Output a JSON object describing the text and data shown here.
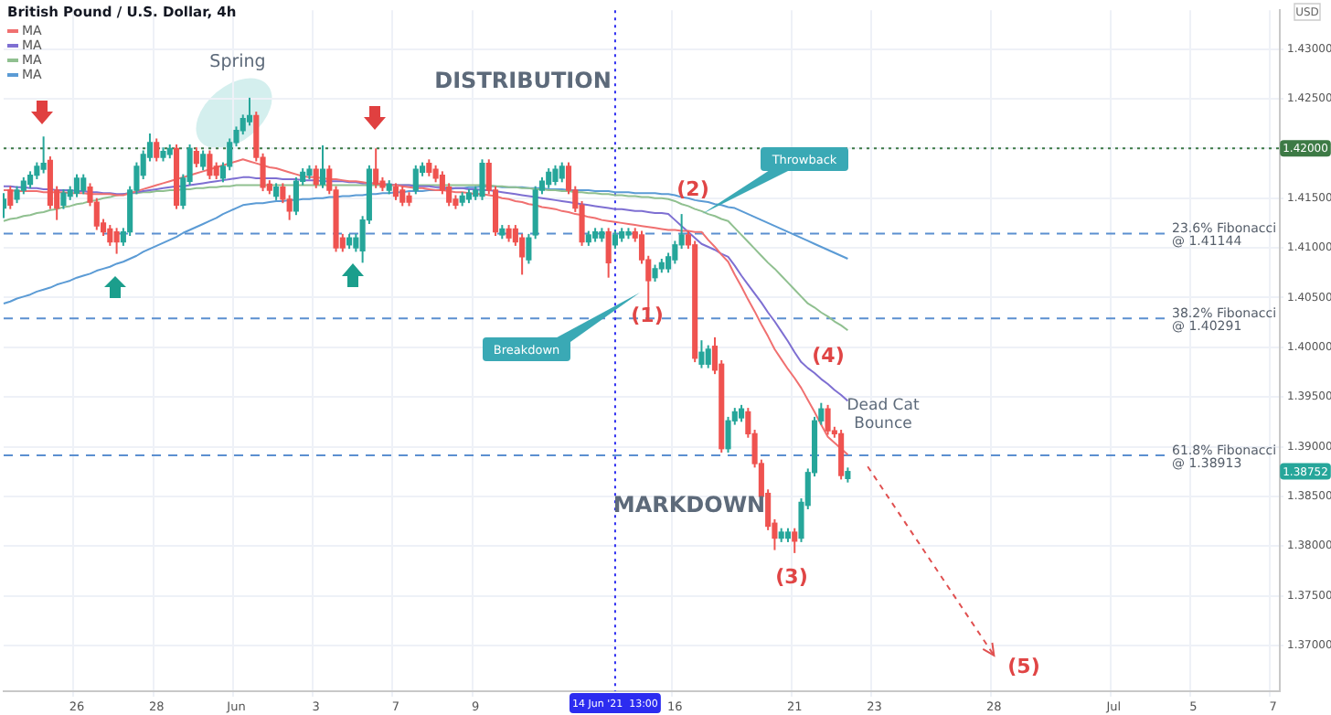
{
  "chart_data": {
    "type": "candlestick",
    "title": "British Pound / U.S. Dollar, 4h",
    "ylabel": "USD",
    "categories": [
      null,
      null,
      null,
      null,
      null,
      null,
      null,
      null,
      null,
      null,
      null,
      "26",
      null,
      null,
      null,
      null,
      null,
      null,
      null,
      null,
      null,
      null,
      null,
      "28",
      null,
      null,
      null,
      null,
      null,
      null,
      null,
      null,
      null,
      null,
      null,
      "Jun",
      null,
      null,
      null,
      null,
      null,
      null,
      null,
      null,
      null,
      null,
      null,
      "3",
      null,
      null,
      null,
      null,
      null,
      null,
      null,
      null,
      null,
      null,
      null,
      "7",
      null,
      null,
      null,
      null,
      null,
      null,
      null,
      null,
      null,
      null,
      null,
      "9",
      null,
      null,
      null,
      null,
      null,
      null,
      null,
      null,
      null,
      null,
      null,
      null,
      null,
      null,
      null,
      null,
      null,
      null,
      null,
      null,
      "14 Jun '21  13:00",
      null,
      null,
      null,
      null,
      null,
      null,
      null,
      null,
      "16",
      null,
      null,
      null,
      null,
      null,
      null,
      null,
      null,
      null,
      null,
      null,
      null,
      null,
      null,
      null,
      null,
      null,
      "21",
      null,
      null,
      null,
      null,
      null,
      null,
      null,
      null,
      null,
      null,
      null,
      "23",
      null,
      null,
      null,
      null,
      null,
      null,
      null,
      null,
      null,
      null,
      null,
      null,
      null,
      null,
      null,
      null,
      null,
      "28",
      null,
      null,
      null,
      null,
      null,
      null,
      null,
      null,
      null,
      null,
      null,
      null,
      null,
      null,
      null,
      null,
      null,
      "Jul",
      null,
      null,
      null,
      null,
      null,
      null,
      null,
      null,
      null,
      null,
      null,
      "5",
      null,
      null,
      null,
      null,
      null,
      null,
      null,
      null,
      null,
      null,
      null,
      "7",
      null
    ],
    "ohlc": [
      [
        1.414,
        1.4155,
        1.413,
        1.4149
      ],
      [
        1.4158,
        1.4162,
        1.4139,
        1.4143
      ],
      [
        1.4149,
        1.4162,
        1.4145,
        1.4158
      ],
      [
        1.4158,
        1.4171,
        1.4154,
        1.4167
      ],
      [
        1.4164,
        1.4177,
        1.416,
        1.4173
      ],
      [
        1.4173,
        1.4186,
        1.4169,
        1.4182
      ],
      [
        1.4179,
        1.4212,
        1.4175,
        1.4185
      ],
      [
        1.4188,
        1.4192,
        1.4139,
        1.4143
      ],
      [
        1.4158,
        1.4162,
        1.4128,
        1.414
      ],
      [
        1.4143,
        1.4159,
        1.4139,
        1.4155
      ],
      [
        1.4152,
        1.4162,
        1.4148,
        1.4158
      ],
      [
        1.4155,
        1.4174,
        1.4151,
        1.417
      ],
      [
        1.4158,
        1.4174,
        1.4154,
        1.417
      ],
      [
        1.4161,
        1.4165,
        1.4142,
        1.4146
      ],
      [
        1.4146,
        1.415,
        1.4118,
        1.4122
      ],
      [
        1.4125,
        1.4129,
        1.4112,
        1.4116
      ],
      [
        1.4119,
        1.4123,
        1.4102,
        1.4106
      ],
      [
        1.4116,
        1.412,
        1.4094,
        1.4106
      ],
      [
        1.4106,
        1.412,
        1.4102,
        1.4116
      ],
      [
        1.4116,
        1.4162,
        1.4112,
        1.4158
      ],
      [
        1.4158,
        1.4186,
        1.4154,
        1.4182
      ],
      [
        1.4173,
        1.4198,
        1.4169,
        1.4194
      ],
      [
        1.4191,
        1.4215,
        1.4187,
        1.4206
      ],
      [
        1.4206,
        1.421,
        1.4187,
        1.4191
      ],
      [
        1.4191,
        1.4201,
        1.4187,
        1.4197
      ],
      [
        1.4194,
        1.4204,
        1.419,
        1.42
      ],
      [
        1.42,
        1.4204,
        1.4139,
        1.4143
      ],
      [
        1.4143,
        1.4174,
        1.4139,
        1.417
      ],
      [
        1.4167,
        1.4204,
        1.4163,
        1.42
      ],
      [
        1.4197,
        1.4201,
        1.4181,
        1.4185
      ],
      [
        1.4182,
        1.4198,
        1.4178,
        1.4194
      ],
      [
        1.4194,
        1.4198,
        1.4169,
        1.4173
      ],
      [
        1.4182,
        1.4186,
        1.4169,
        1.4173
      ],
      [
        1.417,
        1.4186,
        1.4166,
        1.4182
      ],
      [
        1.4182,
        1.421,
        1.4178,
        1.4206
      ],
      [
        1.4206,
        1.4222,
        1.4202,
        1.4218
      ],
      [
        1.4218,
        1.4234,
        1.4214,
        1.423
      ],
      [
        1.4227,
        1.4251,
        1.4223,
        1.4233
      ],
      [
        1.4233,
        1.4237,
        1.4187,
        1.4191
      ],
      [
        1.4191,
        1.4195,
        1.4157,
        1.4161
      ],
      [
        1.4164,
        1.4168,
        1.4154,
        1.4158
      ],
      [
        1.4152,
        1.4165,
        1.4148,
        1.4161
      ],
      [
        1.4161,
        1.4165,
        1.4145,
        1.4149
      ],
      [
        1.4149,
        1.4153,
        1.4128,
        1.4137
      ],
      [
        1.4137,
        1.4171,
        1.4133,
        1.4167
      ],
      [
        1.4167,
        1.418,
        1.4163,
        1.4176
      ],
      [
        1.4173,
        1.4183,
        1.4169,
        1.4179
      ],
      [
        1.4179,
        1.4183,
        1.416,
        1.4164
      ],
      [
        1.4164,
        1.4203,
        1.416,
        1.4179
      ],
      [
        1.4179,
        1.4183,
        1.4154,
        1.4158
      ],
      [
        1.4158,
        1.4162,
        1.4096,
        1.41
      ],
      [
        1.411,
        1.4114,
        1.4096,
        1.41
      ],
      [
        1.4103,
        1.4114,
        1.4099,
        1.411
      ],
      [
        1.41,
        1.4114,
        1.4096,
        1.411
      ],
      [
        1.4097,
        1.4132,
        1.4085,
        1.4128
      ],
      [
        1.4128,
        1.4183,
        1.4124,
        1.4179
      ],
      [
        1.4179,
        1.42,
        1.416,
        1.4164
      ],
      [
        1.4167,
        1.4171,
        1.4157,
        1.4161
      ],
      [
        1.4158,
        1.4168,
        1.4154,
        1.4164
      ],
      [
        1.4161,
        1.4165,
        1.4148,
        1.4152
      ],
      [
        1.4158,
        1.4162,
        1.4142,
        1.4146
      ],
      [
        1.4152,
        1.4156,
        1.4142,
        1.4146
      ],
      [
        1.4158,
        1.4183,
        1.4154,
        1.4179
      ],
      [
        1.4176,
        1.4186,
        1.4172,
        1.4182
      ],
      [
        1.4185,
        1.4189,
        1.4172,
        1.4176
      ],
      [
        1.4179,
        1.4183,
        1.4166,
        1.417
      ],
      [
        1.4173,
        1.4177,
        1.4154,
        1.4158
      ],
      [
        1.4161,
        1.4165,
        1.4142,
        1.4146
      ],
      [
        1.4149,
        1.4153,
        1.4139,
        1.4143
      ],
      [
        1.4146,
        1.4156,
        1.4142,
        1.4152
      ],
      [
        1.4149,
        1.4159,
        1.4145,
        1.4155
      ],
      [
        1.4152,
        1.4162,
        1.4148,
        1.4158
      ],
      [
        1.4152,
        1.4189,
        1.4148,
        1.4185
      ],
      [
        1.4185,
        1.4189,
        1.4154,
        1.4158
      ],
      [
        1.4158,
        1.4162,
        1.4112,
        1.4116
      ],
      [
        1.4113,
        1.4123,
        1.4109,
        1.4119
      ],
      [
        1.4119,
        1.4123,
        1.4106,
        1.411
      ],
      [
        1.4119,
        1.4123,
        1.4102,
        1.4106
      ],
      [
        1.411,
        1.4114,
        1.4073,
        1.4091
      ],
      [
        1.4088,
        1.4114,
        1.4084,
        1.411
      ],
      [
        1.4113,
        1.4162,
        1.4109,
        1.4158
      ],
      [
        1.4158,
        1.4171,
        1.4154,
        1.4167
      ],
      [
        1.4164,
        1.418,
        1.416,
        1.4176
      ],
      [
        1.4167,
        1.4183,
        1.4163,
        1.4179
      ],
      [
        1.417,
        1.4186,
        1.4166,
        1.4182
      ],
      [
        1.4182,
        1.4186,
        1.4154,
        1.4158
      ],
      [
        1.4158,
        1.4162,
        1.4136,
        1.414
      ],
      [
        1.4143,
        1.4147,
        1.4102,
        1.4106
      ],
      [
        1.4106,
        1.4117,
        1.4102,
        1.4113
      ],
      [
        1.411,
        1.412,
        1.4106,
        1.4116
      ],
      [
        1.411,
        1.412,
        1.4106,
        1.4116
      ],
      [
        1.4116,
        1.412,
        1.407,
        1.4085
      ],
      [
        1.4103,
        1.4117,
        1.4099,
        1.4113
      ],
      [
        1.411,
        1.412,
        1.4106,
        1.4116
      ],
      [
        1.4113,
        1.412,
        1.4109,
        1.4116
      ],
      [
        1.4116,
        1.412,
        1.4106,
        1.411
      ],
      [
        1.4113,
        1.4117,
        1.4084,
        1.4088
      ],
      [
        1.4088,
        1.4092,
        1.4037,
        1.4067
      ],
      [
        1.407,
        1.4083,
        1.4066,
        1.4079
      ],
      [
        1.4079,
        1.4089,
        1.4075,
        1.4085
      ],
      [
        1.4079,
        1.4095,
        1.4075,
        1.4091
      ],
      [
        1.4088,
        1.4107,
        1.4084,
        1.4103
      ],
      [
        1.4103,
        1.4134,
        1.4099,
        1.4113
      ],
      [
        1.4113,
        1.4117,
        1.4099,
        1.4103
      ],
      [
        1.4103,
        1.4107,
        1.3985,
        1.3989
      ],
      [
        1.3983,
        1.4007,
        1.3979,
        1.3995
      ],
      [
        1.3983,
        1.4002,
        1.3979,
        1.3998
      ],
      [
        1.4001,
        1.401,
        1.3973,
        1.3977
      ],
      [
        1.3983,
        1.3987,
        1.3894,
        1.3898
      ],
      [
        1.3898,
        1.393,
        1.3894,
        1.3926
      ],
      [
        1.3926,
        1.3939,
        1.3922,
        1.3935
      ],
      [
        1.3929,
        1.3942,
        1.3925,
        1.3938
      ],
      [
        1.3935,
        1.3939,
        1.3909,
        1.3913
      ],
      [
        1.3913,
        1.3917,
        1.3879,
        1.3883
      ],
      [
        1.3883,
        1.3887,
        1.3846,
        1.385
      ],
      [
        1.3853,
        1.3857,
        1.3816,
        1.382
      ],
      [
        1.3823,
        1.3827,
        1.3796,
        1.3808
      ],
      [
        1.3808,
        1.3818,
        1.3804,
        1.3814
      ],
      [
        1.3808,
        1.3818,
        1.3804,
        1.3814
      ],
      [
        1.3814,
        1.3818,
        1.3793,
        1.3805
      ],
      [
        1.3808,
        1.3848,
        1.3804,
        1.3844
      ],
      [
        1.3841,
        1.3878,
        1.3837,
        1.3874
      ],
      [
        1.3874,
        1.393,
        1.387,
        1.3926
      ],
      [
        1.3926,
        1.3944,
        1.3922,
        1.3938
      ],
      [
        1.3938,
        1.3942,
        1.3912,
        1.3916
      ],
      [
        1.3916,
        1.392,
        1.3909,
        1.3913
      ],
      [
        1.3913,
        1.3917,
        1.3867,
        1.3871
      ],
      [
        1.3868,
        1.3879,
        1.3864,
        1.3875
      ],
      null,
      null,
      null,
      null,
      null,
      null,
      null,
      null,
      null,
      null,
      null,
      null,
      null,
      null,
      null,
      null,
      null,
      null,
      null,
      null,
      null,
      null,
      null,
      null,
      null,
      null,
      null,
      null,
      null,
      null,
      null,
      null,
      null,
      null,
      null,
      null,
      null,
      null,
      null,
      null,
      null,
      null,
      null,
      null,
      null,
      null,
      null,
      null,
      null,
      null,
      null,
      null,
      null,
      null,
      null,
      null,
      null,
      null,
      null,
      null,
      null,
      null,
      null,
      null,
      null
    ],
    "series": [
      {
        "name": "MA",
        "type": "line",
        "color": "#f07070",
        "values": [
          1.4158,
          1.4158,
          1.4157,
          1.4157,
          1.4157,
          1.4157,
          1.4156,
          1.4156,
          1.4156,
          1.4156,
          1.4155,
          1.4155,
          1.4155,
          1.4154,
          1.4154,
          1.4154,
          1.4154,
          1.4153,
          1.4153,
          1.4155,
          1.4157,
          1.4159,
          1.4161,
          1.4163,
          1.4165,
          1.4167,
          1.4169,
          1.4171,
          1.4173,
          1.4175,
          1.4177,
          1.4179,
          1.4181,
          1.4183,
          1.4185,
          1.4187,
          1.4189,
          1.4187,
          1.4185,
          1.4183,
          1.4181,
          1.418,
          1.4178,
          1.4176,
          1.4174,
          1.4172,
          1.4171,
          1.4171,
          1.417,
          1.4169,
          1.4169,
          1.4168,
          1.4167,
          1.4167,
          1.4166,
          1.4165,
          1.4165,
          1.4164,
          1.4163,
          1.4163,
          1.4162,
          1.4161,
          1.416,
          1.416,
          1.4159,
          1.4158,
          1.4158,
          1.4157,
          1.4156,
          1.4156,
          1.4155,
          1.4154,
          1.4154,
          1.4153,
          1.4152,
          1.415,
          1.4149,
          1.4147,
          1.4146,
          1.4144,
          1.4143,
          1.4141,
          1.414,
          1.4139,
          1.4137,
          1.4136,
          1.4134,
          1.4133,
          1.4131,
          1.413,
          1.4128,
          1.4127,
          1.4126,
          1.4125,
          1.4124,
          1.4123,
          1.4122,
          1.4121,
          1.412,
          1.4119,
          1.4118,
          1.4118,
          1.4117,
          1.4117,
          1.4116,
          1.4116,
          1.4108,
          1.4101,
          1.4093,
          1.4086,
          1.4073,
          1.4061,
          1.4048,
          1.4036,
          1.4023,
          1.4011,
          1.3998,
          1.3988,
          1.3978,
          1.3969,
          1.3959,
          1.3947,
          1.3935,
          1.3922,
          1.391,
          1.3904,
          1.3898,
          1.3892,
          null,
          null,
          null,
          null,
          null,
          null,
          null,
          null,
          null,
          null,
          null,
          null,
          null,
          null,
          null,
          null,
          null,
          null,
          null,
          null,
          null,
          null,
          null,
          null,
          null,
          null,
          null,
          null,
          null,
          null,
          null,
          null,
          null,
          null,
          null,
          null,
          null,
          null,
          null,
          null,
          null,
          null,
          null,
          null,
          null,
          null,
          null,
          null,
          null,
          null,
          null,
          null,
          null,
          null,
          null,
          null,
          null,
          null,
          null,
          null,
          null,
          null,
          null,
          null,
          null
        ]
      },
      {
        "name": "MA",
        "type": "line",
        "color": "#7e6fd2",
        "values": [
          1.4162,
          1.4162,
          1.4161,
          1.4161,
          1.416,
          1.416,
          1.4159,
          1.4159,
          1.4158,
          1.4158,
          1.4158,
          1.4157,
          1.4157,
          1.4156,
          1.4156,
          1.4155,
          1.4155,
          1.4154,
          1.4154,
          1.4155,
          1.4156,
          1.4157,
          1.4158,
          1.4159,
          1.416,
          1.4161,
          1.4162,
          1.4162,
          1.4163,
          1.4164,
          1.4165,
          1.4166,
          1.4167,
          1.4168,
          1.4169,
          1.417,
          1.4171,
          1.4171,
          1.417,
          1.417,
          1.417,
          1.417,
          1.4169,
          1.4169,
          1.4169,
          1.4168,
          1.4168,
          1.4168,
          1.4167,
          1.4167,
          1.4167,
          1.4167,
          1.4166,
          1.4166,
          1.4165,
          1.4165,
          1.4165,
          1.4164,
          1.4164,
          1.4163,
          1.4163,
          1.4163,
          1.4162,
          1.4162,
          1.4162,
          1.4161,
          1.4161,
          1.416,
          1.416,
          1.416,
          1.4159,
          1.4159,
          1.4158,
          1.4158,
          1.4157,
          1.4156,
          1.4155,
          1.4154,
          1.4153,
          1.4152,
          1.4151,
          1.415,
          1.4149,
          1.4148,
          1.4147,
          1.4146,
          1.4145,
          1.4144,
          1.4143,
          1.4142,
          1.4141,
          1.414,
          1.4139,
          1.4139,
          1.4138,
          1.4137,
          1.4137,
          1.4136,
          1.4135,
          1.4135,
          1.4134,
          1.4128,
          1.4122,
          1.4116,
          1.411,
          1.4104,
          1.4101,
          1.4098,
          1.4094,
          1.4091,
          1.4082,
          1.4072,
          1.4063,
          1.4054,
          1.4045,
          1.4035,
          1.4026,
          1.4016,
          1.4006,
          1.3995,
          1.3985,
          1.3979,
          1.3974,
          1.3968,
          1.3963,
          1.3957,
          1.3952,
          1.3946,
          null,
          null,
          null,
          null,
          null,
          null,
          null,
          null,
          null,
          null,
          null,
          null,
          null,
          null,
          null,
          null,
          null,
          null,
          null,
          null,
          null,
          null,
          null,
          null,
          null,
          null,
          null,
          null,
          null,
          null,
          null,
          null,
          null,
          null,
          null,
          null,
          null,
          null,
          null,
          null,
          null,
          null,
          null,
          null,
          null,
          null,
          null,
          null,
          null,
          null,
          null,
          null,
          null,
          null,
          null,
          null,
          null,
          null,
          null,
          null,
          null,
          null,
          null,
          null,
          null
        ]
      },
      {
        "name": "MA",
        "type": "line",
        "color": "#90c090",
        "values": [
          1.4127,
          1.4129,
          1.413,
          1.4132,
          1.4133,
          1.4135,
          1.4136,
          1.4138,
          1.4139,
          1.4141,
          1.4142,
          1.4144,
          1.4145,
          1.4147,
          1.4148,
          1.415,
          1.4151,
          1.4153,
          1.4154,
          1.4155,
          1.4155,
          1.4156,
          1.4156,
          1.4157,
          1.4157,
          1.4158,
          1.4158,
          1.4159,
          1.4159,
          1.416,
          1.416,
          1.4161,
          1.4161,
          1.4162,
          1.4162,
          1.4163,
          1.4163,
          1.4163,
          1.4163,
          1.4163,
          1.4163,
          1.4163,
          1.4163,
          1.4163,
          1.4163,
          1.4163,
          1.4163,
          1.4163,
          1.4163,
          1.4163,
          1.4163,
          1.4163,
          1.4163,
          1.4163,
          1.4163,
          1.4163,
          1.4163,
          1.4163,
          1.4163,
          1.4163,
          1.4163,
          1.4163,
          1.4163,
          1.4163,
          1.4163,
          1.4163,
          1.4163,
          1.4163,
          1.4163,
          1.4163,
          1.4163,
          1.4163,
          1.4163,
          1.4163,
          1.4162,
          1.4162,
          1.4161,
          1.4161,
          1.416,
          1.416,
          1.4159,
          1.4159,
          1.4158,
          1.4158,
          1.4157,
          1.4157,
          1.4156,
          1.4156,
          1.4155,
          1.4155,
          1.4154,
          1.4154,
          1.4153,
          1.4153,
          1.4152,
          1.4152,
          1.4151,
          1.4151,
          1.415,
          1.415,
          1.4149,
          1.4147,
          1.4144,
          1.4142,
          1.4139,
          1.4137,
          1.4134,
          1.4132,
          1.4129,
          1.4127,
          1.412,
          1.4113,
          1.4106,
          1.4099,
          1.4092,
          1.4085,
          1.4079,
          1.4072,
          1.4065,
          1.4058,
          1.4051,
          1.4044,
          1.404,
          1.4035,
          1.4031,
          1.4026,
          1.4022,
          1.4017,
          null,
          null,
          null,
          null,
          null,
          null,
          null,
          null,
          null,
          null,
          null,
          null,
          null,
          null,
          null,
          null,
          null,
          null,
          null,
          null,
          null,
          null,
          null,
          null,
          null,
          null,
          null,
          null,
          null,
          null,
          null,
          null,
          null,
          null,
          null,
          null,
          null,
          null,
          null,
          null,
          null,
          null,
          null,
          null,
          null,
          null,
          null,
          null,
          null,
          null,
          null,
          null,
          null,
          null,
          null,
          null,
          null,
          null,
          null,
          null,
          null,
          null,
          null,
          null,
          null
        ]
      },
      {
        "name": "MA",
        "type": "line",
        "color": "#5b9bd5",
        "values": [
          1.4044,
          1.4046,
          1.4049,
          1.4051,
          1.4053,
          1.4056,
          1.4058,
          1.406,
          1.4063,
          1.4065,
          1.4067,
          1.407,
          1.4072,
          1.4074,
          1.4077,
          1.4079,
          1.4081,
          1.4084,
          1.4086,
          1.4089,
          1.4092,
          1.4096,
          1.4099,
          1.4102,
          1.4105,
          1.4108,
          1.4111,
          1.4115,
          1.4118,
          1.4121,
          1.4124,
          1.4127,
          1.413,
          1.4134,
          1.4137,
          1.414,
          1.4143,
          1.4144,
          1.4145,
          1.4145,
          1.4146,
          1.4147,
          1.4147,
          1.4148,
          1.4148,
          1.4149,
          1.4149,
          1.415,
          1.415,
          1.4151,
          1.4151,
          1.4152,
          1.4152,
          1.4153,
          1.4153,
          1.4154,
          1.4154,
          1.4155,
          1.4155,
          1.4156,
          1.4156,
          1.4157,
          1.4157,
          1.4157,
          1.4158,
          1.4158,
          1.4159,
          1.4159,
          1.416,
          1.416,
          1.4161,
          1.4161,
          1.4162,
          1.4162,
          1.4162,
          1.4161,
          1.4161,
          1.4161,
          1.4161,
          1.416,
          1.416,
          1.416,
          1.4159,
          1.4159,
          1.4159,
          1.4158,
          1.4158,
          1.4158,
          1.4158,
          1.4157,
          1.4157,
          1.4157,
          1.4156,
          1.4156,
          1.4156,
          1.4155,
          1.4155,
          1.4155,
          1.4155,
          1.4154,
          1.4154,
          1.4153,
          1.4151,
          1.415,
          1.4148,
          1.4147,
          1.4146,
          1.4144,
          1.4143,
          1.4141,
          1.414,
          1.4137,
          1.4134,
          1.4131,
          1.4128,
          1.4125,
          1.4122,
          1.4119,
          1.4116,
          1.4113,
          1.411,
          1.4107,
          1.4104,
          1.4101,
          1.4098,
          1.4095,
          1.4092,
          1.4089,
          null,
          null,
          null,
          null,
          null,
          null,
          null,
          null,
          null,
          null,
          null,
          null,
          null,
          null,
          null,
          null,
          null,
          null,
          null,
          null,
          null,
          null,
          null,
          null,
          null,
          null,
          null,
          null,
          null,
          null,
          null,
          null,
          null,
          null,
          null,
          null,
          null,
          null,
          null,
          null,
          null,
          null,
          null,
          null,
          null,
          null,
          null,
          null,
          null,
          null,
          null,
          null,
          null,
          null,
          null,
          null,
          null,
          null,
          null,
          null,
          null,
          null,
          null,
          null,
          null
        ]
      },
      {
        "type": "line",
        "color": "#e05050",
        "line_style": "dashed",
        "values": [
          null,
          null,
          null,
          null,
          null,
          null,
          null,
          null,
          null,
          null,
          null,
          null,
          null,
          null,
          null,
          null,
          null,
          null,
          null,
          null,
          null,
          null,
          null,
          null,
          null,
          null,
          null,
          null,
          null,
          null,
          null,
          null,
          null,
          null,
          null,
          null,
          null,
          null,
          null,
          null,
          null,
          null,
          null,
          null,
          null,
          null,
          null,
          null,
          null,
          null,
          null,
          null,
          null,
          null,
          null,
          null,
          null,
          null,
          null,
          null,
          null,
          null,
          null,
          null,
          null,
          null,
          null,
          null,
          null,
          null,
          null,
          null,
          null,
          null,
          null,
          null,
          null,
          null,
          null,
          null,
          null,
          null,
          null,
          null,
          null,
          null,
          null,
          null,
          null,
          null,
          null,
          null,
          null,
          null,
          null,
          null,
          null,
          null,
          null,
          null,
          null,
          null,
          null,
          null,
          null,
          null,
          null,
          null,
          null,
          null,
          null,
          null,
          null,
          null,
          null,
          null,
          null,
          null,
          null,
          null,
          null,
          null,
          null,
          null,
          null,
          null,
          null,
          null,
          null,
          null,
          1.388,
          1.387,
          1.386,
          1.385,
          1.384,
          1.383,
          1.382,
          1.381,
          1.38,
          1.379,
          1.378,
          1.377,
          1.376,
          1.375,
          1.374,
          1.373,
          1.372,
          1.371,
          1.37,
          1.369,
          null,
          null,
          null,
          null,
          null,
          null,
          null,
          null,
          null,
          null,
          null,
          null,
          null,
          null,
          null,
          null,
          null,
          null,
          null,
          null,
          null,
          null,
          null,
          null,
          null,
          null,
          null,
          null,
          null,
          null,
          null,
          null,
          null,
          null,
          null,
          null,
          null,
          null,
          null,
          null,
          null,
          null,
          null
        ]
      }
    ],
    "ylim": [
      1.3654,
      1.4339
    ],
    "yticks": [
      {
        "value": 1.37,
        "label": "1.37000"
      },
      {
        "value": 1.375,
        "label": "1.37500"
      },
      {
        "value": 1.38,
        "label": "1.38000"
      },
      {
        "value": 1.385,
        "label": "1.38500"
      },
      {
        "value": 1.39,
        "label": "1.39000"
      },
      {
        "value": 1.395,
        "label": "1.39500"
      },
      {
        "value": 1.4,
        "label": "1.40000"
      },
      {
        "value": 1.405,
        "label": "1.40500"
      },
      {
        "value": 1.41,
        "label": "1.41000"
      },
      {
        "value": 1.415,
        "label": "1.41500"
      },
      {
        "value": 1.42,
        "label": "1.42000"
      },
      {
        "value": 1.425,
        "label": "1.42500"
      },
      {
        "value": 1.43,
        "label": "1.43000"
      }
    ],
    "ref_lines": [
      {
        "axis": "y",
        "value": 1.42,
        "color": "#3d7a45",
        "line_style": "dotted"
      },
      {
        "axis": "y",
        "value": 1.41144,
        "label": "23.6% Fibonacci\n@ 1.41144",
        "color": "#5b8fd0",
        "line_style": "dashed"
      },
      {
        "axis": "y",
        "value": 1.40291,
        "label": "38.2% Fibonacci\n@ 1.40291",
        "color": "#5b8fd0",
        "line_style": "dashed"
      },
      {
        "axis": "y",
        "value": 1.38913,
        "label": "61.8% Fibonacci\n@ 1.38913",
        "color": "#5b8fd0",
        "line_style": "dashed"
      },
      {
        "axis": "x",
        "value": "14 Jun '21  13:00",
        "color": "#2c2cf0",
        "line_style": "dotted"
      }
    ],
    "annotations": [
      "Spring",
      "DISTRIBUTION",
      "MARKDOWN",
      "Throwback",
      "Breakdown",
      "(1)",
      "(2)",
      "(3)",
      "(4)",
      "(5)",
      "Dead Cat\nBounce",
      {
        "text": "1.38752",
        "y": 1.38752
      }
    ],
    "grid": true,
    "legend": "top left",
    "marker": "none",
    "line_style": "solid"
  }
}
